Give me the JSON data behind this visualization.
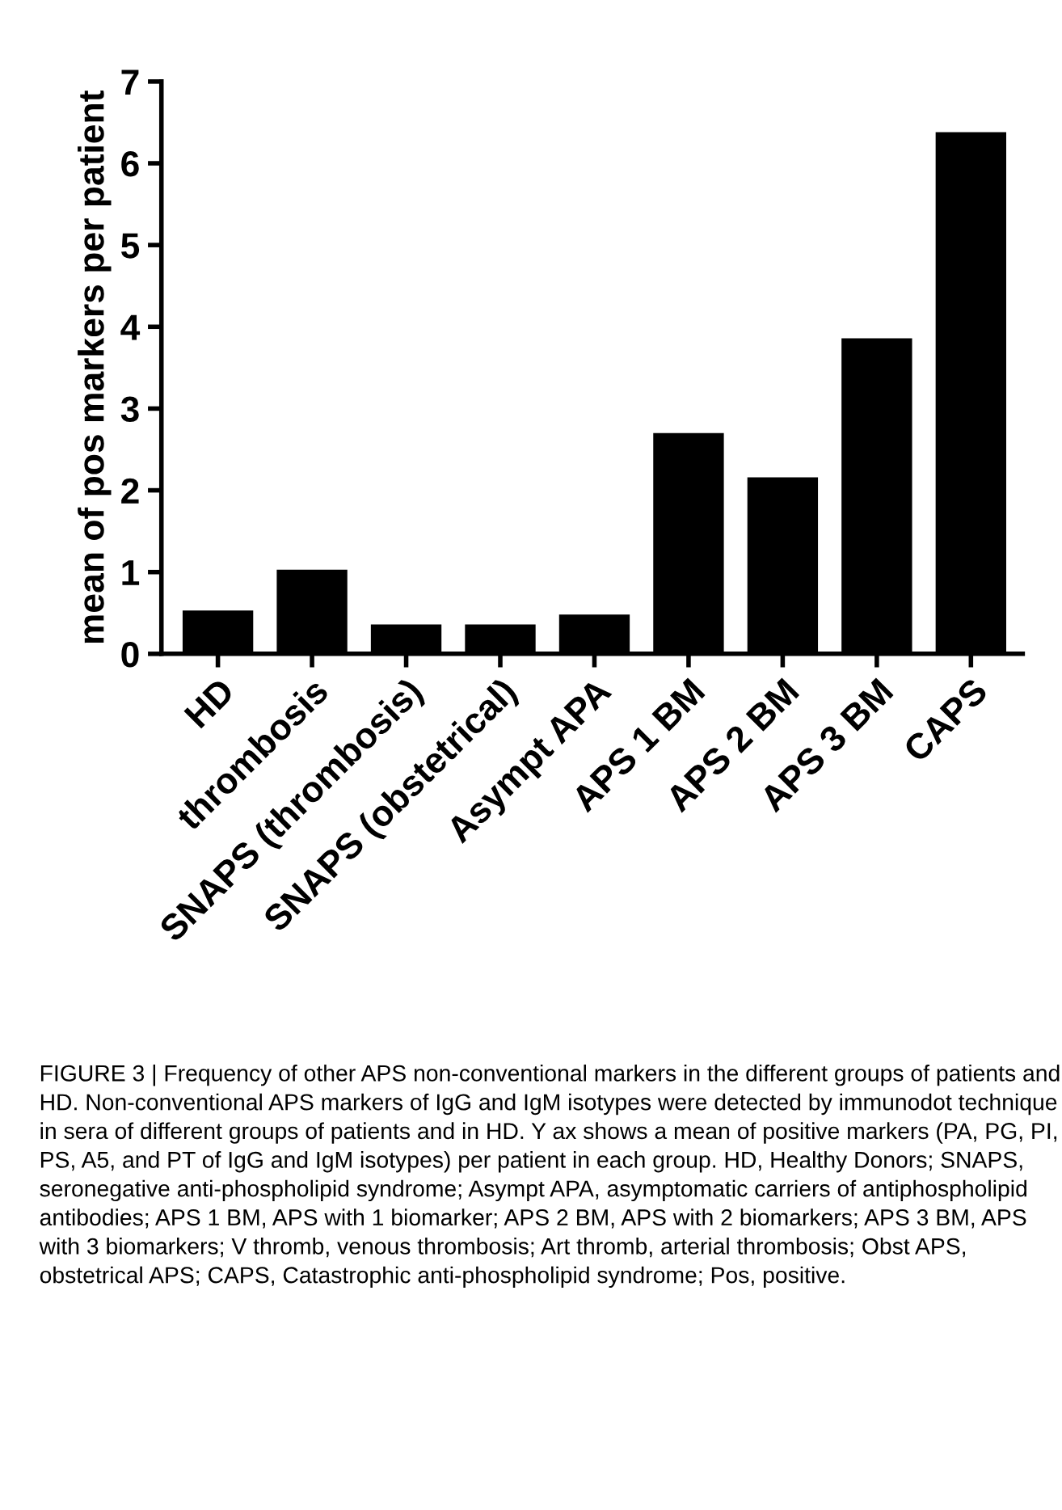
{
  "chart_data": {
    "type": "bar",
    "ylabel": "mean of pos markers per patient",
    "categories": [
      "HD",
      "thrombosis",
      "SNAPS (thrombosis)",
      "SNAPS (obstetrical)",
      "Asympt APA",
      "APS 1 BM",
      "APS 2 BM",
      "APS 3 BM",
      "CAPS"
    ],
    "values": [
      0.53,
      1.03,
      0.36,
      0.36,
      0.48,
      2.7,
      2.16,
      3.86,
      6.38
    ],
    "color": "#000000",
    "ylim": [
      0,
      7
    ],
    "yticks": [
      0,
      1,
      2,
      3,
      4,
      5,
      6,
      7
    ],
    "grid": false,
    "legend": false,
    "annotations": [
      "FIGURE 3 | Frequency of other APS non-conventional markers in the different groups of patients and HD. Non-conventional APS markers of IgG and IgM isotypes were detected by immunodot technique in sera of different groups of patients and in HD. Y ax shows a mean of positive markers (PA, PG, PI, PS, A5, and PT of IgG and IgM isotypes) per patient in each group. HD, Healthy Donors; SNAPS, seronegative anti-phospholipid syndrome; Asympt APA, asymptomatic carriers of antiphospholipid antibodies; APS 1 BM, APS with 1 biomarker; APS 2 BM, APS with 2 biomarkers; APS 3 BM, APS with 3 biomarkers; V thromb, venous thrombosis; Art thromb, arterial thrombosis; Obst APS, obstetrical APS; CAPS, Catastrophic anti-phospholipid syndrome; Pos, positive."
    ]
  }
}
